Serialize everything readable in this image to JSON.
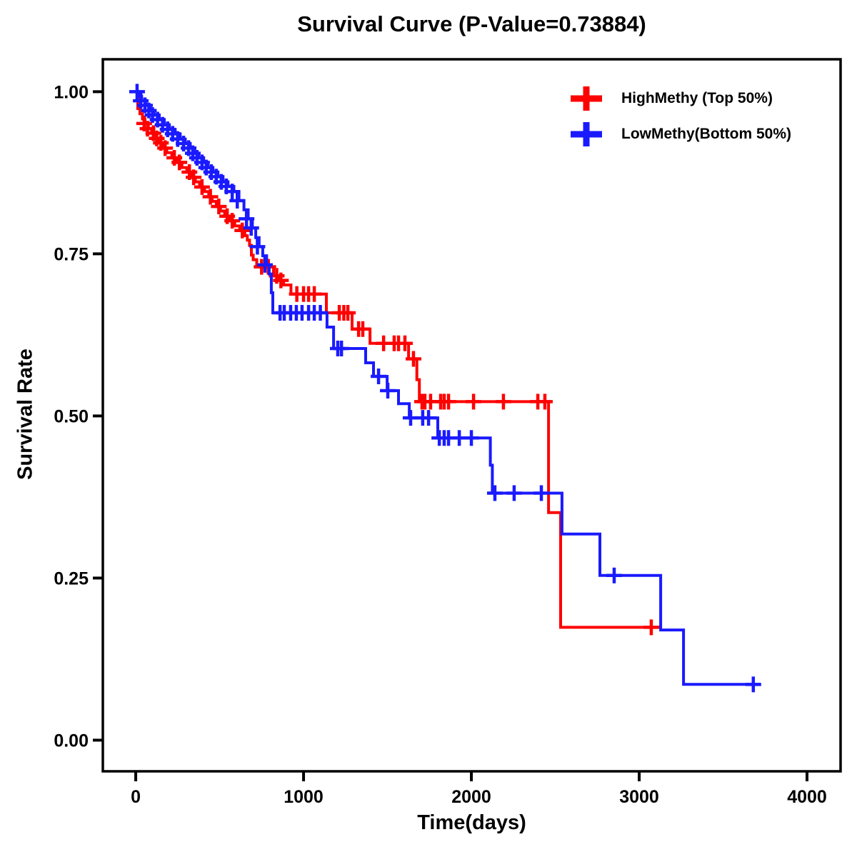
{
  "chart_data": {
    "type": "line",
    "subtype": "kaplan-meier-step-curve",
    "title": "Survival Curve (P-Value=0.73884)",
    "p_value": "0.73884",
    "xlabel": "Time(days)",
    "ylabel": "Survival Rate",
    "xlim": [
      -196,
      4200
    ],
    "ylim": [
      -0.048,
      1.05
    ],
    "x_ticks": [
      0,
      1000,
      2000,
      3000,
      4000
    ],
    "x_tick_labels": [
      "0",
      "1000",
      "2000",
      "3000",
      "4000"
    ],
    "y_ticks": [
      0.0,
      0.25,
      0.5,
      0.75,
      1.0
    ],
    "y_tick_labels": [
      "0.00",
      "0.25",
      "0.50",
      "0.75",
      "1.00"
    ],
    "grid": false,
    "legend_position": "top-right",
    "axis_color": "#000000",
    "series": [
      {
        "name": "HighMethy (Top 50%)",
        "color": "#FF0000",
        "end_day": 3128,
        "steps": [
          [
            0,
            1.0
          ],
          [
            12,
            0.974
          ],
          [
            25,
            0.966
          ],
          [
            40,
            0.958
          ],
          [
            55,
            0.951
          ],
          [
            75,
            0.943
          ],
          [
            95,
            0.936
          ],
          [
            115,
            0.928
          ],
          [
            135,
            0.921
          ],
          [
            160,
            0.913
          ],
          [
            185,
            0.906
          ],
          [
            215,
            0.898
          ],
          [
            245,
            0.891
          ],
          [
            275,
            0.883
          ],
          [
            305,
            0.876
          ],
          [
            330,
            0.868
          ],
          [
            355,
            0.861
          ],
          [
            380,
            0.853
          ],
          [
            410,
            0.846
          ],
          [
            435,
            0.838
          ],
          [
            455,
            0.831
          ],
          [
            480,
            0.823
          ],
          [
            505,
            0.816
          ],
          [
            530,
            0.808
          ],
          [
            560,
            0.801
          ],
          [
            590,
            0.793
          ],
          [
            620,
            0.786
          ],
          [
            650,
            0.778
          ],
          [
            665,
            0.771
          ],
          [
            678,
            0.763
          ],
          [
            689,
            0.748
          ],
          [
            700,
            0.741
          ],
          [
            721,
            0.73
          ],
          [
            821,
            0.716
          ],
          [
            855,
            0.709
          ],
          [
            881,
            0.702
          ],
          [
            925,
            0.688
          ],
          [
            1136,
            0.659
          ],
          [
            1289,
            0.634
          ],
          [
            1396,
            0.612
          ],
          [
            1626,
            0.588
          ],
          [
            1675,
            0.556
          ],
          [
            1690,
            0.522
          ],
          [
            2460,
            0.351
          ],
          [
            2532,
            0.174
          ]
        ],
        "censors": [
          [
            50,
            0.951
          ],
          [
            70,
            0.943
          ],
          [
            105,
            0.936
          ],
          [
            125,
            0.928
          ],
          [
            150,
            0.921
          ],
          [
            175,
            0.913
          ],
          [
            230,
            0.898
          ],
          [
            260,
            0.891
          ],
          [
            320,
            0.876
          ],
          [
            345,
            0.868
          ],
          [
            395,
            0.853
          ],
          [
            445,
            0.838
          ],
          [
            495,
            0.823
          ],
          [
            545,
            0.808
          ],
          [
            575,
            0.801
          ],
          [
            635,
            0.786
          ],
          [
            750,
            0.73
          ],
          [
            790,
            0.73
          ],
          [
            840,
            0.716
          ],
          [
            865,
            0.709
          ],
          [
            960,
            0.688
          ],
          [
            1000,
            0.688
          ],
          [
            1030,
            0.688
          ],
          [
            1064,
            0.688
          ],
          [
            1213,
            0.659
          ],
          [
            1240,
            0.659
          ],
          [
            1264,
            0.659
          ],
          [
            1328,
            0.634
          ],
          [
            1353,
            0.634
          ],
          [
            1477,
            0.612
          ],
          [
            1540,
            0.612
          ],
          [
            1566,
            0.612
          ],
          [
            1604,
            0.612
          ],
          [
            1655,
            0.588
          ],
          [
            1706,
            0.522
          ],
          [
            1723,
            0.522
          ],
          [
            1757,
            0.522
          ],
          [
            1817,
            0.522
          ],
          [
            1838,
            0.522
          ],
          [
            1864,
            0.522
          ],
          [
            2013,
            0.522
          ],
          [
            2191,
            0.522
          ],
          [
            2396,
            0.522
          ],
          [
            2438,
            0.522
          ],
          [
            3072,
            0.174
          ]
        ]
      },
      {
        "name": "LowMethy(Bottom 50%)",
        "color": "#1A1AFF",
        "end_day": 3720,
        "steps": [
          [
            0,
            1.0
          ],
          [
            18,
            0.993
          ],
          [
            35,
            0.986
          ],
          [
            60,
            0.979
          ],
          [
            85,
            0.971
          ],
          [
            110,
            0.964
          ],
          [
            140,
            0.957
          ],
          [
            170,
            0.949
          ],
          [
            200,
            0.942
          ],
          [
            235,
            0.935
          ],
          [
            265,
            0.927
          ],
          [
            295,
            0.92
          ],
          [
            325,
            0.913
          ],
          [
            350,
            0.905
          ],
          [
            375,
            0.898
          ],
          [
            405,
            0.891
          ],
          [
            430,
            0.883
          ],
          [
            460,
            0.876
          ],
          [
            490,
            0.869
          ],
          [
            520,
            0.861
          ],
          [
            550,
            0.854
          ],
          [
            585,
            0.846
          ],
          [
            615,
            0.832
          ],
          [
            645,
            0.818
          ],
          [
            670,
            0.804
          ],
          [
            695,
            0.79
          ],
          [
            715,
            0.775
          ],
          [
            735,
            0.761
          ],
          [
            757,
            0.747
          ],
          [
            780,
            0.733
          ],
          [
            795,
            0.719
          ],
          [
            808,
            0.69
          ],
          [
            817,
            0.659
          ],
          [
            1140,
            0.637
          ],
          [
            1179,
            0.604
          ],
          [
            1370,
            0.582
          ],
          [
            1417,
            0.561
          ],
          [
            1498,
            0.539
          ],
          [
            1566,
            0.519
          ],
          [
            1630,
            0.497
          ],
          [
            1800,
            0.466
          ],
          [
            2113,
            0.424
          ],
          [
            2125,
            0.381
          ],
          [
            2540,
            0.318
          ],
          [
            2766,
            0.254
          ],
          [
            3128,
            0.17
          ],
          [
            3264,
            0.086
          ]
        ],
        "censors": [
          [
            8,
            1.0
          ],
          [
            30,
            0.986
          ],
          [
            55,
            0.979
          ],
          [
            78,
            0.971
          ],
          [
            100,
            0.964
          ],
          [
            130,
            0.957
          ],
          [
            160,
            0.949
          ],
          [
            190,
            0.942
          ],
          [
            220,
            0.935
          ],
          [
            250,
            0.927
          ],
          [
            285,
            0.92
          ],
          [
            315,
            0.913
          ],
          [
            340,
            0.905
          ],
          [
            365,
            0.898
          ],
          [
            395,
            0.891
          ],
          [
            420,
            0.883
          ],
          [
            450,
            0.876
          ],
          [
            480,
            0.869
          ],
          [
            510,
            0.861
          ],
          [
            540,
            0.854
          ],
          [
            575,
            0.846
          ],
          [
            605,
            0.832
          ],
          [
            660,
            0.804
          ],
          [
            688,
            0.79
          ],
          [
            725,
            0.761
          ],
          [
            770,
            0.733
          ],
          [
            860,
            0.659
          ],
          [
            885,
            0.659
          ],
          [
            923,
            0.659
          ],
          [
            957,
            0.659
          ],
          [
            991,
            0.659
          ],
          [
            1030,
            0.659
          ],
          [
            1064,
            0.659
          ],
          [
            1100,
            0.659
          ],
          [
            1204,
            0.604
          ],
          [
            1226,
            0.604
          ],
          [
            1447,
            0.561
          ],
          [
            1502,
            0.539
          ],
          [
            1638,
            0.497
          ],
          [
            1710,
            0.497
          ],
          [
            1745,
            0.497
          ],
          [
            1809,
            0.466
          ],
          [
            1838,
            0.466
          ],
          [
            1864,
            0.466
          ],
          [
            1928,
            0.466
          ],
          [
            2000,
            0.466
          ],
          [
            2140,
            0.381
          ],
          [
            2255,
            0.381
          ],
          [
            2417,
            0.381
          ],
          [
            2851,
            0.254
          ],
          [
            3680,
            0.086
          ]
        ]
      }
    ]
  }
}
